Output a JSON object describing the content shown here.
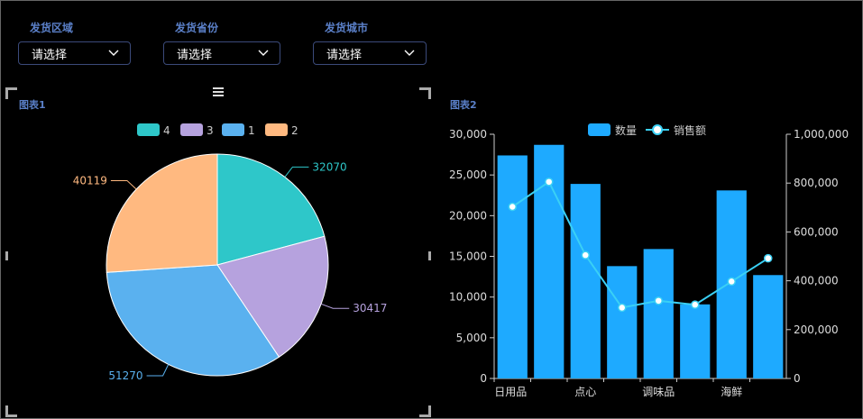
{
  "filters": [
    {
      "label": "发货区域",
      "value": "请选择"
    },
    {
      "label": "发货省份",
      "value": "请选择"
    },
    {
      "label": "发货城市",
      "value": "请选择"
    }
  ],
  "panel1": {
    "title": "图表1"
  },
  "panel2": {
    "title": "图表2"
  },
  "colors": {
    "accent": "#5a7fc7",
    "bar": "#1eaaff",
    "line": "#3ad0f5"
  },
  "chart_data": [
    {
      "type": "pie",
      "legend_position": "top",
      "slices": [
        {
          "label": "4",
          "value": 32070,
          "color": "#2ec7c9"
        },
        {
          "label": "3",
          "value": 30417,
          "color": "#b6a2de"
        },
        {
          "label": "1",
          "value": 51270,
          "color": "#5ab1ef"
        },
        {
          "label": "2",
          "value": 40119,
          "color": "#ffb980"
        }
      ]
    },
    {
      "type": "bar",
      "legend_position": "top",
      "categories": [
        "日用品",
        "",
        "点心",
        "",
        "调味品",
        "",
        "海鲜",
        ""
      ],
      "series": [
        {
          "name": "数量",
          "type": "bar",
          "axis": "left",
          "values": [
            27400,
            28700,
            23900,
            13800,
            15900,
            9100,
            23100,
            12700
          ]
        },
        {
          "name": "销售额",
          "type": "line",
          "axis": "right",
          "values": [
            703000,
            805000,
            505000,
            290000,
            318000,
            302000,
            397000,
            492000
          ]
        }
      ],
      "y_left": {
        "min": 0,
        "max": 30000,
        "ticks": [
          "0",
          "5,000",
          "10,000",
          "15,000",
          "20,000",
          "25,000",
          "30,000"
        ]
      },
      "y_right": {
        "min": 0,
        "max": 1000000,
        "ticks": [
          "0",
          "200,000",
          "400,000",
          "600,000",
          "800,000",
          "1,000,000"
        ]
      },
      "x_tick_labels": [
        "日用品",
        "点心",
        "调味品",
        "海鲜"
      ],
      "grid": false
    }
  ]
}
